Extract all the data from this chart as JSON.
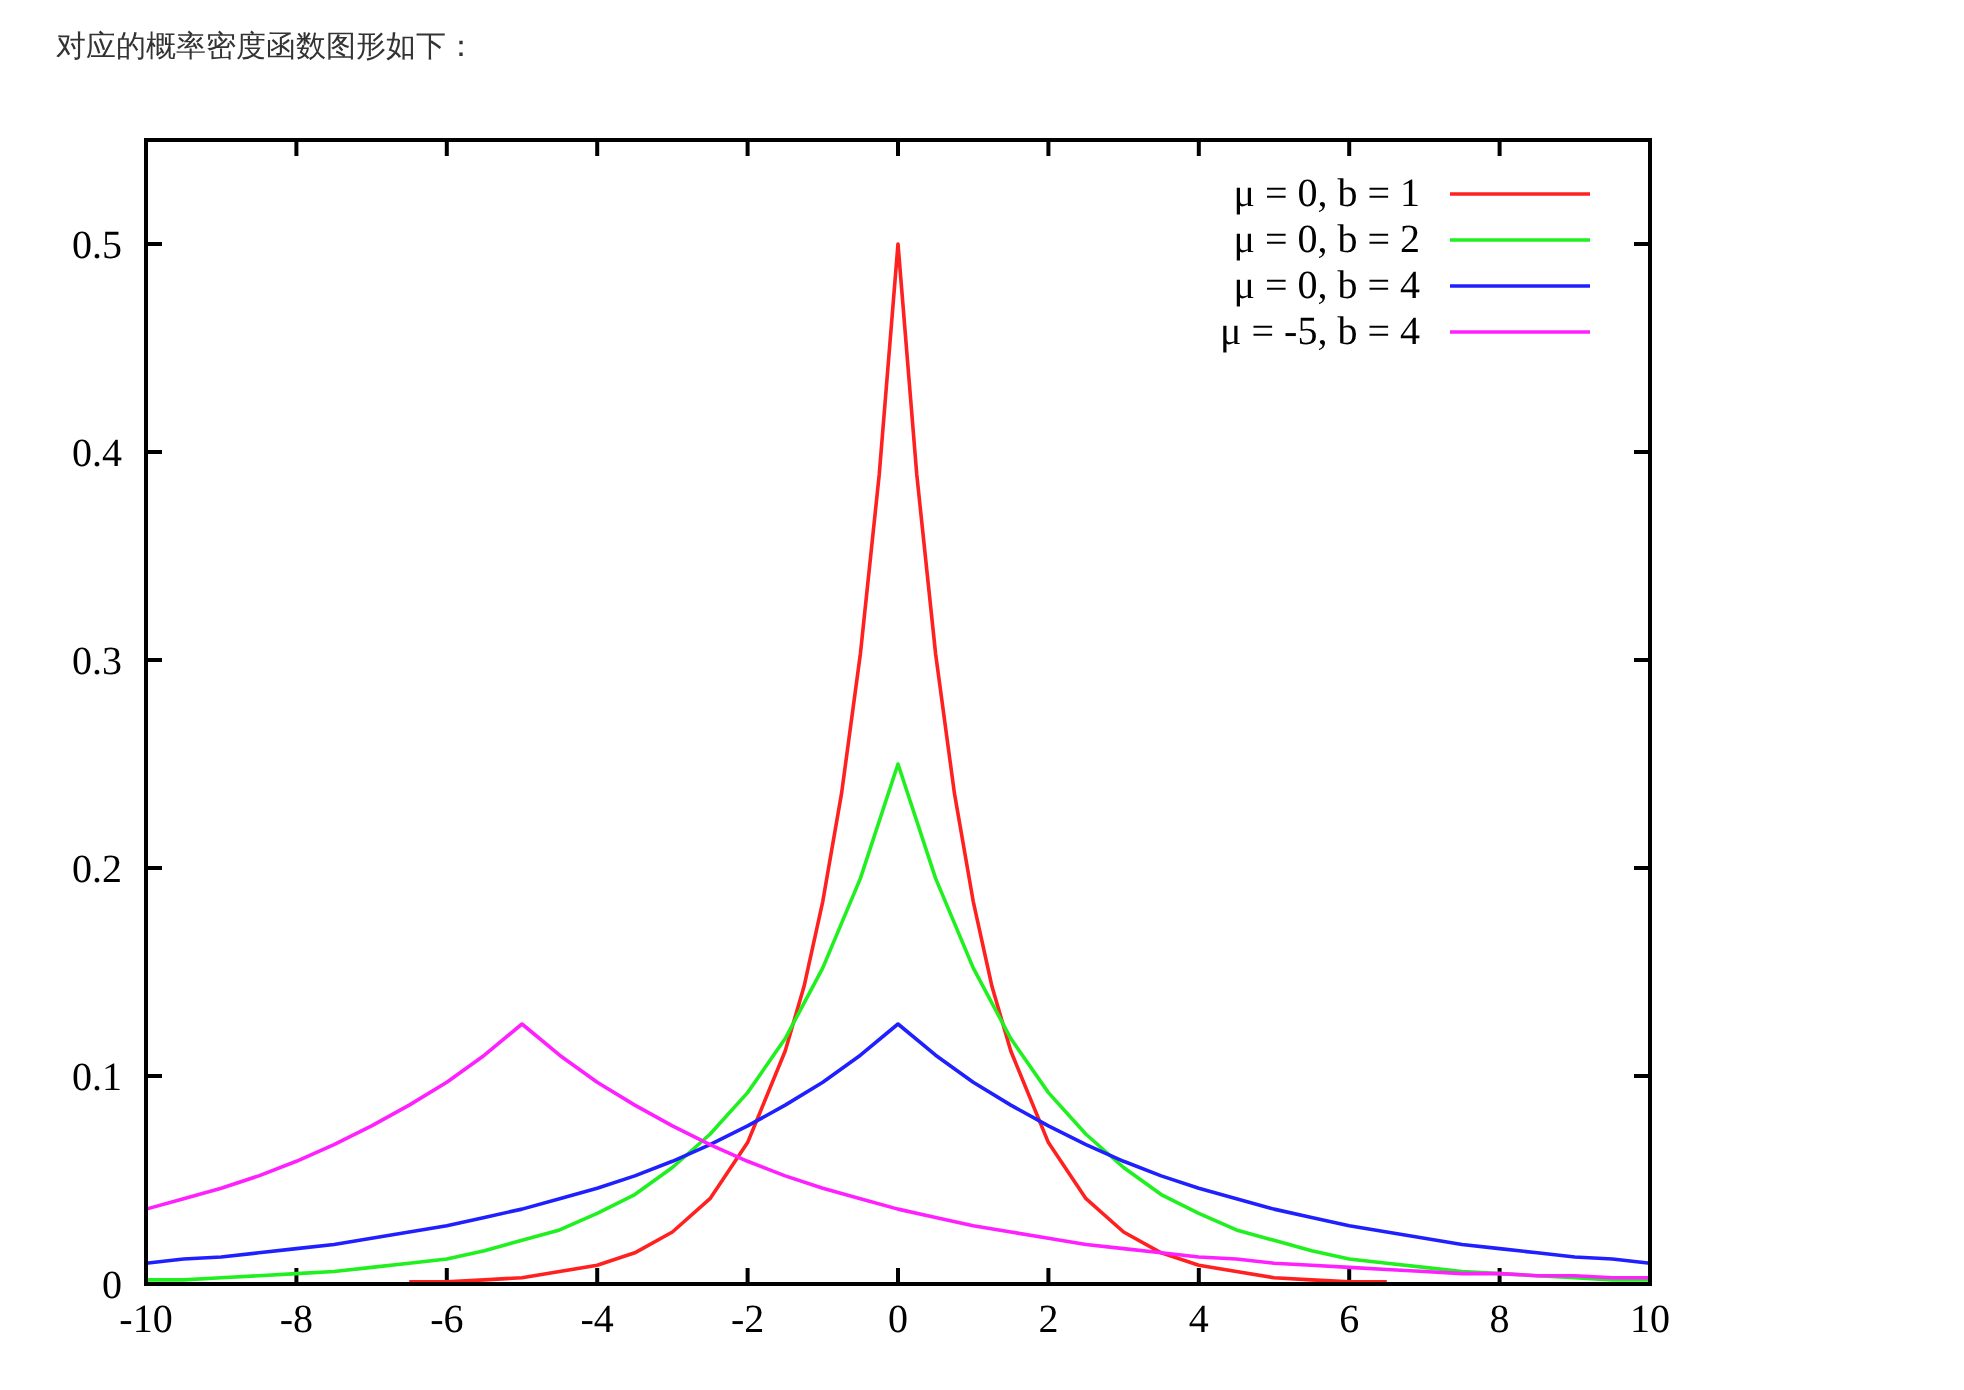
{
  "chart_data": {
    "type": "line",
    "title": "对应的概率密度函数图形如下：",
    "xlim": [
      -10,
      10
    ],
    "xticks": [
      -10,
      -8,
      -6,
      -4,
      -2,
      0,
      2,
      4,
      6,
      8,
      10
    ],
    "ylim": [
      0,
      0.55
    ],
    "yticks": [
      0,
      0.1,
      0.2,
      0.3,
      0.4,
      0.5
    ],
    "grid": false,
    "legend": "top right",
    "marker": "none",
    "line_style": "solid",
    "x": [
      -10,
      -9.5,
      -9,
      -8.5,
      -8,
      -7.5,
      -7,
      -6.5,
      -6,
      -5.5,
      -5,
      -4.5,
      -4,
      -3.5,
      -3,
      -2.5,
      -2,
      -1.5,
      -1,
      -0.5,
      0,
      0.5,
      1,
      1.5,
      2,
      2.5,
      3,
      3.5,
      4,
      4.5,
      5,
      5.5,
      6,
      6.5,
      7,
      7.5,
      8,
      8.5,
      9,
      9.5,
      10
    ],
    "series": [
      {
        "name": "μ =  0, b = 1",
        "color": "#ff2020",
        "x": [
          -6.5,
          -6,
          -5.5,
          -5,
          -4.5,
          -4,
          -3.5,
          -3,
          -2.5,
          -2,
          -1.5,
          -1.25,
          -1,
          -0.75,
          -0.5,
          -0.25,
          0,
          0.25,
          0.5,
          0.75,
          1,
          1.25,
          1.5,
          2,
          2.5,
          3,
          3.5,
          4,
          4.5,
          5,
          5.5,
          6,
          6.5
        ],
        "values": [
          0.001,
          0.001,
          0.002,
          0.003,
          0.006,
          0.009,
          0.015,
          0.025,
          0.041,
          0.068,
          0.112,
          0.143,
          0.184,
          0.236,
          0.303,
          0.389,
          0.5,
          0.389,
          0.303,
          0.236,
          0.184,
          0.143,
          0.112,
          0.068,
          0.041,
          0.025,
          0.015,
          0.009,
          0.006,
          0.003,
          0.002,
          0.001,
          0.001
        ]
      },
      {
        "name": "μ =  0, b = 2",
        "color": "#20f020",
        "values": [
          0.002,
          0.002,
          0.003,
          0.004,
          0.005,
          0.006,
          0.008,
          0.01,
          0.012,
          0.016,
          0.021,
          0.026,
          0.034,
          0.043,
          0.056,
          0.072,
          0.092,
          0.118,
          0.152,
          0.195,
          0.25,
          0.195,
          0.152,
          0.118,
          0.092,
          0.072,
          0.056,
          0.043,
          0.034,
          0.026,
          0.021,
          0.016,
          0.012,
          0.01,
          0.008,
          0.006,
          0.005,
          0.004,
          0.003,
          0.002,
          0.002
        ]
      },
      {
        "name": "μ =  0, b = 4",
        "color": "#2020ff",
        "values": [
          0.01,
          0.012,
          0.013,
          0.015,
          0.017,
          0.019,
          0.022,
          0.025,
          0.028,
          0.032,
          0.036,
          0.041,
          0.046,
          0.052,
          0.059,
          0.067,
          0.076,
          0.086,
          0.097,
          0.11,
          0.125,
          0.11,
          0.097,
          0.086,
          0.076,
          0.067,
          0.059,
          0.052,
          0.046,
          0.041,
          0.036,
          0.032,
          0.028,
          0.025,
          0.022,
          0.019,
          0.017,
          0.015,
          0.013,
          0.012,
          0.01
        ]
      },
      {
        "name": "μ = -5, b = 4",
        "color": "#ff20ff",
        "values": [
          0.036,
          0.041,
          0.046,
          0.052,
          0.059,
          0.067,
          0.076,
          0.086,
          0.097,
          0.11,
          0.125,
          0.11,
          0.097,
          0.086,
          0.076,
          0.067,
          0.059,
          0.052,
          0.046,
          0.041,
          0.036,
          0.032,
          0.028,
          0.025,
          0.022,
          0.019,
          0.017,
          0.015,
          0.013,
          0.012,
          0.01,
          0.009,
          0.008,
          0.007,
          0.006,
          0.005,
          0.005,
          0.004,
          0.004,
          0.003,
          0.003
        ]
      }
    ]
  }
}
